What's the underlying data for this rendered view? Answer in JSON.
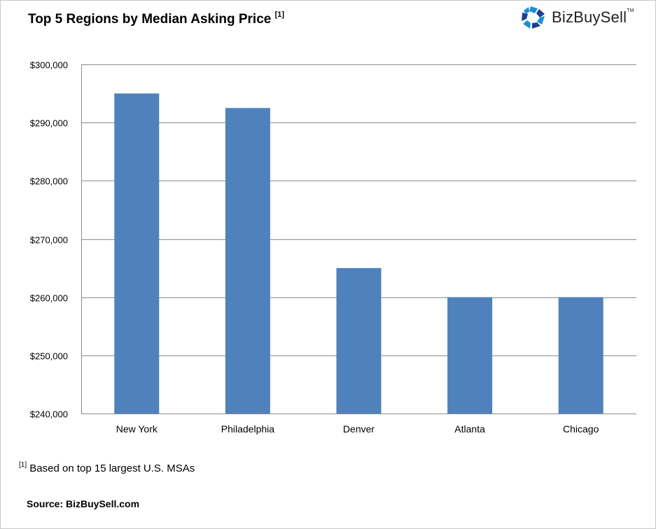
{
  "header": {
    "title": "Top 5 Regions by Median Asking Price",
    "title_footnote_mark": "[1]",
    "logo_text": "BizBuySell",
    "logo_tm": "TM",
    "logo_icon": "bizbuysell-logo-icon"
  },
  "footnote": {
    "mark": "[1]",
    "text": "Based on top 15 largest U.S. MSAs"
  },
  "source": "Source: BizBuySell.com",
  "colors": {
    "bar": "#4F81BD",
    "grid": "#8c8c8c",
    "logo_blue": "#1b8fd6",
    "logo_dark": "#1c3f8f"
  },
  "chart_data": {
    "type": "bar",
    "title": "Top 5 Regions by Median Asking Price",
    "categories": [
      "New York",
      "Philadelphia",
      "Denver",
      "Atlanta",
      "Chicago"
    ],
    "values": [
      295000,
      292500,
      265000,
      260000,
      260000
    ],
    "ylim": [
      240000,
      300000
    ],
    "yticks": [
      240000,
      250000,
      260000,
      270000,
      280000,
      290000,
      300000
    ],
    "ytick_labels": [
      "$240,000",
      "$250,000",
      "$260,000",
      "$270,000",
      "$280,000",
      "$290,000",
      "$300,000"
    ],
    "grid": true,
    "legend": "none"
  }
}
